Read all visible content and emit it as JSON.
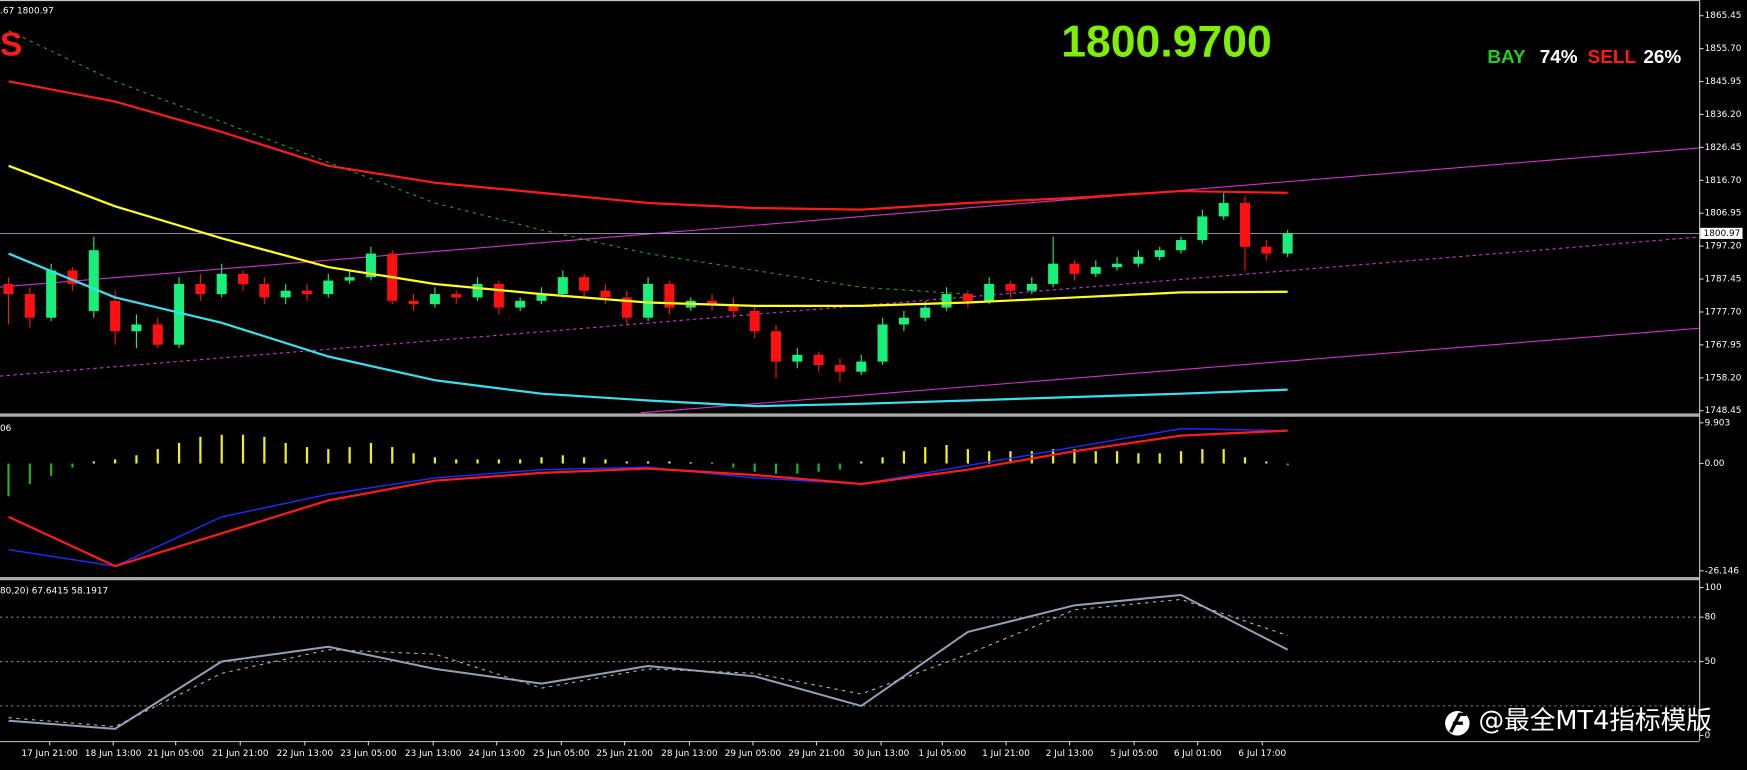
{
  "overlay": {
    "price": "1800.9700",
    "buy_label": "BAY",
    "buy_pct": "74%",
    "sell_label": "SELL",
    "sell_pct": "26%",
    "signal_letter": "S",
    "watermark": "@最全MT4指标模版"
  },
  "chart_data": [
    {
      "type": "candlestick",
      "info_label": ".67 1800.97",
      "xlim": [
        -0.4,
        79.3
      ],
      "ylim": [
        1747.5,
        1870.1
      ],
      "yticks": [
        1865.45,
        {
          "value": 1855.7,
          "label": "1855.70"
        },
        1845.95,
        {
          "value": 1836.2,
          "label": "1836.20"
        },
        1826.45,
        {
          "value": 1816.7,
          "label": "1816.70"
        },
        1806.95,
        {
          "value": 1797.2,
          "label": "1797.20"
        },
        1787.45,
        {
          "value": 1777.7,
          "label": "1777.70"
        },
        1767.95,
        {
          "value": 1758.2,
          "label": "1758.20"
        },
        1748.45
      ],
      "xticks": [
        {
          "value": 1.93,
          "label": "17 Jun 21:00"
        },
        {
          "value": 4.91,
          "label": "18 Jun 13:00"
        },
        {
          "value": 7.84,
          "label": "21 Jun 05:00"
        },
        {
          "value": 10.87,
          "label": "21 Jun 21:00"
        },
        {
          "value": 13.9,
          "label": "22 Jun 13:00"
        },
        {
          "value": 16.88,
          "label": "23 Jun 05:00"
        },
        {
          "value": 19.92,
          "label": "23 Jun 13:00"
        },
        {
          "value": 22.9,
          "label": "24 Jun 13:00"
        },
        {
          "value": 25.93,
          "label": "25 Jun 05:00"
        },
        {
          "value": 28.9,
          "label": "25 Jun 21:00"
        },
        {
          "value": 31.94,
          "label": "28 Jun 13:00"
        },
        {
          "value": 34.92,
          "label": "29 Jun 05:00"
        },
        {
          "value": 37.9,
          "label": "29 Jun 21:00"
        },
        {
          "value": 40.93,
          "label": "30 Jun 13:00"
        },
        {
          "value": 43.8,
          "label": "1 Jul 05:00"
        },
        {
          "value": 46.79,
          "label": "1 Jul 21:00"
        },
        {
          "value": 49.77,
          "label": "2 Jul 13:00"
        },
        {
          "value": 52.8,
          "label": "5 Jul 05:00"
        },
        {
          "value": 55.78,
          "label": "6 Jul 01:00"
        },
        {
          "value": 58.81,
          "label": "6 Jul 17:00"
        }
      ],
      "current_price": 1800.97,
      "up_color": "#19f07a",
      "down_color": "#ff1010",
      "candles": [
        [
          1786,
          1788,
          1774,
          1783
        ],
        [
          1783,
          1785,
          1773,
          1776
        ],
        [
          1776,
          1792,
          1775,
          1790
        ],
        [
          1790,
          1791,
          1784,
          1786
        ],
        [
          1778,
          1800,
          1776,
          1796
        ],
        [
          1781,
          1784,
          1768,
          1772
        ],
        [
          1772,
          1777,
          1767,
          1774
        ],
        [
          1774,
          1776,
          1767,
          1768
        ],
        [
          1768,
          1788,
          1767,
          1786
        ],
        [
          1786,
          1789,
          1781,
          1783
        ],
        [
          1783,
          1792,
          1782,
          1789
        ],
        [
          1789,
          1790,
          1784,
          1786
        ],
        [
          1786,
          1788,
          1780,
          1782
        ],
        [
          1782,
          1786,
          1780,
          1784
        ],
        [
          1784,
          1786,
          1781,
          1783
        ],
        [
          1783,
          1789,
          1782,
          1787
        ],
        [
          1787,
          1790,
          1786,
          1788
        ],
        [
          1788,
          1797,
          1787,
          1795
        ],
        [
          1795,
          1796,
          1780,
          1781
        ],
        [
          1781,
          1783,
          1778,
          1780
        ],
        [
          1780,
          1785,
          1779,
          1783
        ],
        [
          1783,
          1784,
          1780,
          1782
        ],
        [
          1782,
          1788,
          1781,
          1786
        ],
        [
          1786,
          1787,
          1777,
          1779
        ],
        [
          1779,
          1782,
          1778,
          1781
        ],
        [
          1781,
          1785,
          1780,
          1783
        ],
        [
          1783,
          1790,
          1782,
          1788
        ],
        [
          1788,
          1789,
          1782,
          1784
        ],
        [
          1784,
          1786,
          1780,
          1782
        ],
        [
          1782,
          1784,
          1774,
          1776
        ],
        [
          1776,
          1788,
          1775,
          1786
        ],
        [
          1786,
          1787,
          1777,
          1779
        ],
        [
          1779,
          1782,
          1778,
          1781
        ],
        [
          1781,
          1783,
          1778,
          1780
        ],
        [
          1780,
          1782,
          1776,
          1778
        ],
        [
          1778,
          1780,
          1770,
          1772
        ],
        [
          1772,
          1774,
          1758,
          1763
        ],
        [
          1763,
          1767,
          1761,
          1765
        ],
        [
          1765,
          1766,
          1760,
          1762
        ],
        [
          1762,
          1764,
          1757,
          1760
        ],
        [
          1760,
          1765,
          1759,
          1763
        ],
        [
          1763,
          1776,
          1762,
          1774
        ],
        [
          1774,
          1778,
          1772,
          1776
        ],
        [
          1776,
          1781,
          1775,
          1779
        ],
        [
          1779,
          1785,
          1778,
          1783
        ],
        [
          1783,
          1784,
          1779,
          1781
        ],
        [
          1781,
          1788,
          1780,
          1786
        ],
        [
          1786,
          1787,
          1782,
          1784
        ],
        [
          1784,
          1788,
          1783,
          1786
        ],
        [
          1786,
          1800,
          1785,
          1792
        ],
        [
          1792,
          1793,
          1787,
          1789
        ],
        [
          1789,
          1793,
          1788,
          1791
        ],
        [
          1791,
          1794,
          1790,
          1792
        ],
        [
          1792,
          1796,
          1791,
          1794
        ],
        [
          1794,
          1797,
          1793,
          1796
        ],
        [
          1796,
          1800,
          1795,
          1799
        ],
        [
          1799,
          1808,
          1798,
          1806
        ],
        [
          1806,
          1813,
          1805,
          1810
        ],
        [
          1810,
          1812,
          1790,
          1797
        ],
        [
          1797,
          1799,
          1793,
          1795
        ],
        [
          1795,
          1802,
          1794,
          1800.97
        ]
      ],
      "x": [
        0,
        5,
        10,
        15,
        20,
        25,
        30,
        35,
        40,
        45,
        50,
        55,
        60
      ],
      "lines": [
        {
          "color": "#ff1a1a",
          "width": 2,
          "values": [
            1846,
            1840,
            1831,
            1821,
            1816,
            1813,
            1810,
            1808.5,
            1808,
            1810,
            1811.5,
            1813.5,
            1813
          ]
        },
        {
          "color": "#ffff1a",
          "width": 2,
          "values": [
            1821,
            1809,
            1799.5,
            1791,
            1786,
            1783,
            1780.5,
            1779.5,
            1779.5,
            1780.5,
            1782,
            1783.5,
            1783.7
          ]
        },
        {
          "color": "#38e0f0",
          "width": 2,
          "values": [
            1795,
            1782,
            1774.5,
            1764.5,
            1757.5,
            1753.5,
            1751.5,
            1749.8,
            1750.5,
            1751.5,
            1752.5,
            1753.5,
            1754.7
          ]
        },
        {
          "color": "#1fa01f",
          "width": 1,
          "dash": true,
          "values": [
            1861,
            1846,
            1834,
            1822,
            1810,
            1802,
            1795,
            1790,
            1785,
            1783,
            null,
            null,
            null
          ]
        }
      ]
    },
    {
      "type": "macd",
      "info_label": "06",
      "xlim": [
        -0.4,
        79.3
      ],
      "ylim": [
        -27.77,
        11.26
      ],
      "yticks": [
        9.903,
        {
          "value": 0,
          "label": "0.00"
        },
        -26.146
      ],
      "positive_color": "#f0f020",
      "negative_color": "#20b020",
      "histogram": [
        -8,
        -5,
        -3,
        -1,
        0.5,
        1,
        2,
        3.5,
        5,
        6.5,
        7,
        7,
        6.5,
        5,
        4,
        3.5,
        4,
        5,
        4,
        2.5,
        1.5,
        1,
        1,
        1,
        1,
        1.5,
        2,
        1.5,
        1,
        0.5,
        0.5,
        0.5,
        0.3,
        0.2,
        -1,
        -2,
        -2.5,
        -2.5,
        -2,
        -1.5,
        0.5,
        1.5,
        3,
        4,
        4.5,
        3.5,
        3,
        3,
        3,
        3.5,
        3.5,
        3,
        3,
        2.5,
        2.5,
        3,
        3.5,
        3.5,
        1.5,
        0.5,
        -0.5
      ],
      "x": [
        0,
        5,
        10,
        15,
        20,
        25,
        30,
        35,
        40,
        45,
        50,
        55,
        60
      ],
      "lines": [
        {
          "color": "#1a2cff",
          "width": 1.3,
          "values": [
            -21,
            -25,
            -13,
            -7.5,
            -3.5,
            -1.5,
            -0.9,
            -3.5,
            -5,
            -0.5,
            4,
            8.5,
            8
          ]
        },
        {
          "color": "#ff1a1a",
          "width": 2,
          "values": [
            -13,
            -25,
            -17,
            -9,
            -4.2,
            -2.3,
            -1.2,
            -2.8,
            -5,
            -1.5,
            3,
            6.8,
            8
          ]
        }
      ]
    },
    {
      "type": "stochastic",
      "info_label": "80,20) 67.6415 58.1917",
      "xlim": [
        -0.4,
        79.3
      ],
      "ylim": [
        -3.8,
        105.3
      ],
      "yticks": [
        100,
        80,
        50,
        0
      ],
      "levels": [
        80,
        50,
        20
      ],
      "x": [
        0,
        5,
        10,
        15,
        20,
        25,
        30,
        35,
        40,
        45,
        50,
        55,
        60
      ],
      "lines": [
        {
          "color": "#8ea2b8",
          "width": 1.8,
          "values": [
            10,
            4.5,
            50,
            60,
            45,
            35,
            47,
            40,
            20,
            70,
            88,
            95,
            58
          ]
        },
        {
          "color": "#b0b0b0",
          "width": 1,
          "dash": true,
          "values": [
            12,
            6,
            42,
            58,
            55,
            32,
            45,
            42,
            28,
            55,
            85,
            92,
            67.6
          ]
        }
      ]
    }
  ]
}
